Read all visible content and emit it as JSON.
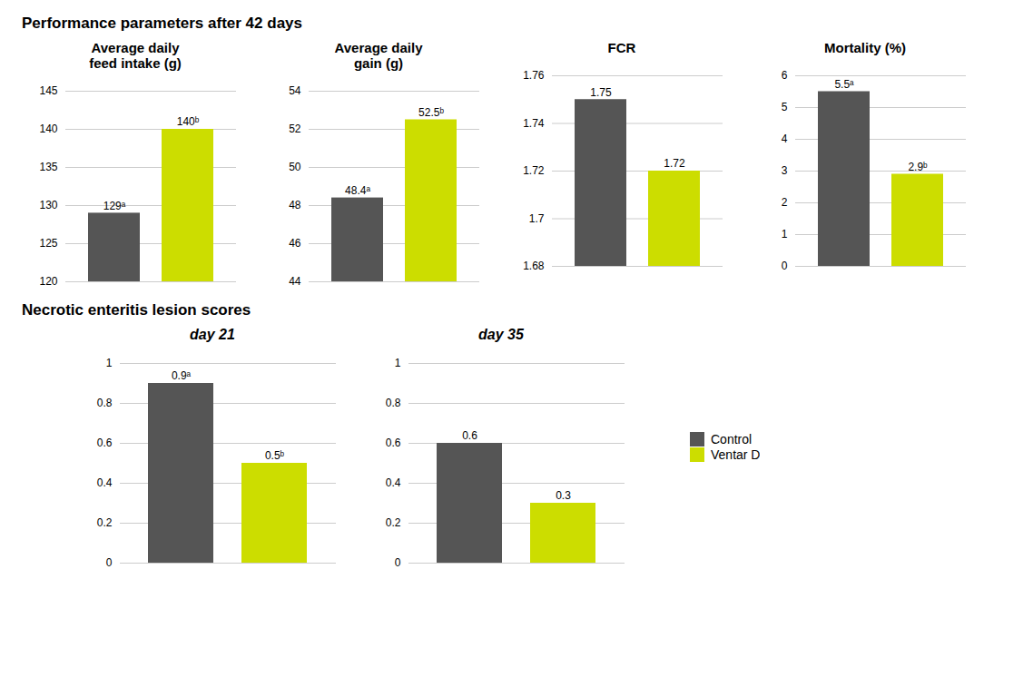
{
  "chart_data": [
    {
      "type": "bar",
      "title": "Performance parameters after 42 days",
      "charts": [
        {
          "type": "bar",
          "title": "Average daily\nfeed intake (g)",
          "series": [
            {
              "name": "Control",
              "color": "#555555",
              "values": [
                129
              ],
              "value_labels": [
                "129ᵃ"
              ]
            },
            {
              "name": "Ventar D",
              "color": "#ccdd00",
              "values": [
                140
              ],
              "value_labels": [
                "140ᵇ"
              ]
            }
          ],
          "ylim": [
            120,
            145
          ],
          "yticks": [
            120,
            125,
            130,
            135,
            140,
            145
          ],
          "grid": true,
          "data_labels": true,
          "tick_labels": "y"
        },
        {
          "type": "bar",
          "title": "Average daily\ngain (g)",
          "series": [
            {
              "name": "Control",
              "color": "#555555",
              "values": [
                48.4
              ],
              "value_labels": [
                "48.4ᵃ"
              ]
            },
            {
              "name": "Ventar D",
              "color": "#ccdd00",
              "values": [
                52.5
              ],
              "value_labels": [
                "52.5ᵇ"
              ]
            }
          ],
          "ylim": [
            44,
            54
          ],
          "yticks": [
            44,
            46,
            48,
            50,
            52,
            54
          ],
          "grid": true,
          "data_labels": true,
          "tick_labels": "y"
        },
        {
          "type": "bar",
          "title": "FCR",
          "series": [
            {
              "name": "Control",
              "color": "#555555",
              "values": [
                1.75
              ]
            },
            {
              "name": "Ventar D",
              "color": "#ccdd00",
              "values": [
                1.72
              ]
            }
          ],
          "ylim": [
            1.68,
            1.76
          ],
          "yticks": [
            1.68,
            1.7,
            1.72,
            1.74,
            1.76
          ],
          "grid": true,
          "data_labels": true,
          "tick_labels": "y"
        },
        {
          "type": "bar",
          "title": "Mortality (%)",
          "series": [
            {
              "name": "Control",
              "color": "#555555",
              "values": [
                5.5
              ],
              "value_labels": [
                "5.5ᵃ"
              ]
            },
            {
              "name": "Ventar D",
              "color": "#ccdd00",
              "values": [
                2.9
              ],
              "value_labels": [
                "2.9ᵇ"
              ]
            }
          ],
          "ylim": [
            0,
            6
          ],
          "yticks": [
            0,
            1,
            2,
            3,
            4,
            5,
            6
          ],
          "grid": true,
          "data_labels": true,
          "tick_labels": "y"
        }
      ]
    },
    {
      "type": "bar",
      "title": "Necrotic enteritis lesion scores",
      "legend": "right",
      "charts": [
        {
          "type": "bar",
          "title": "day 21",
          "series": [
            {
              "name": "Control",
              "color": "#555555",
              "values": [
                0.9
              ],
              "value_labels": [
                "0.9ᵃ"
              ]
            },
            {
              "name": "Ventar D",
              "color": "#ccdd00",
              "values": [
                0.5
              ],
              "value_labels": [
                "0.5ᵇ"
              ]
            }
          ],
          "ylim": [
            0,
            1
          ],
          "yticks": [
            0,
            0.2,
            0.4,
            0.6,
            0.8,
            1
          ],
          "grid": true,
          "data_labels": true,
          "tick_labels": "y"
        },
        {
          "type": "bar",
          "title": "day 35",
          "series": [
            {
              "name": "Control",
              "color": "#555555",
              "values": [
                0.6
              ]
            },
            {
              "name": "Ventar D",
              "color": "#ccdd00",
              "values": [
                0.3
              ]
            }
          ],
          "ylim": [
            0,
            1
          ],
          "yticks": [
            0,
            0.2,
            0.4,
            0.6,
            0.8,
            1
          ],
          "grid": true,
          "data_labels": true,
          "tick_labels": "y"
        }
      ]
    }
  ]
}
